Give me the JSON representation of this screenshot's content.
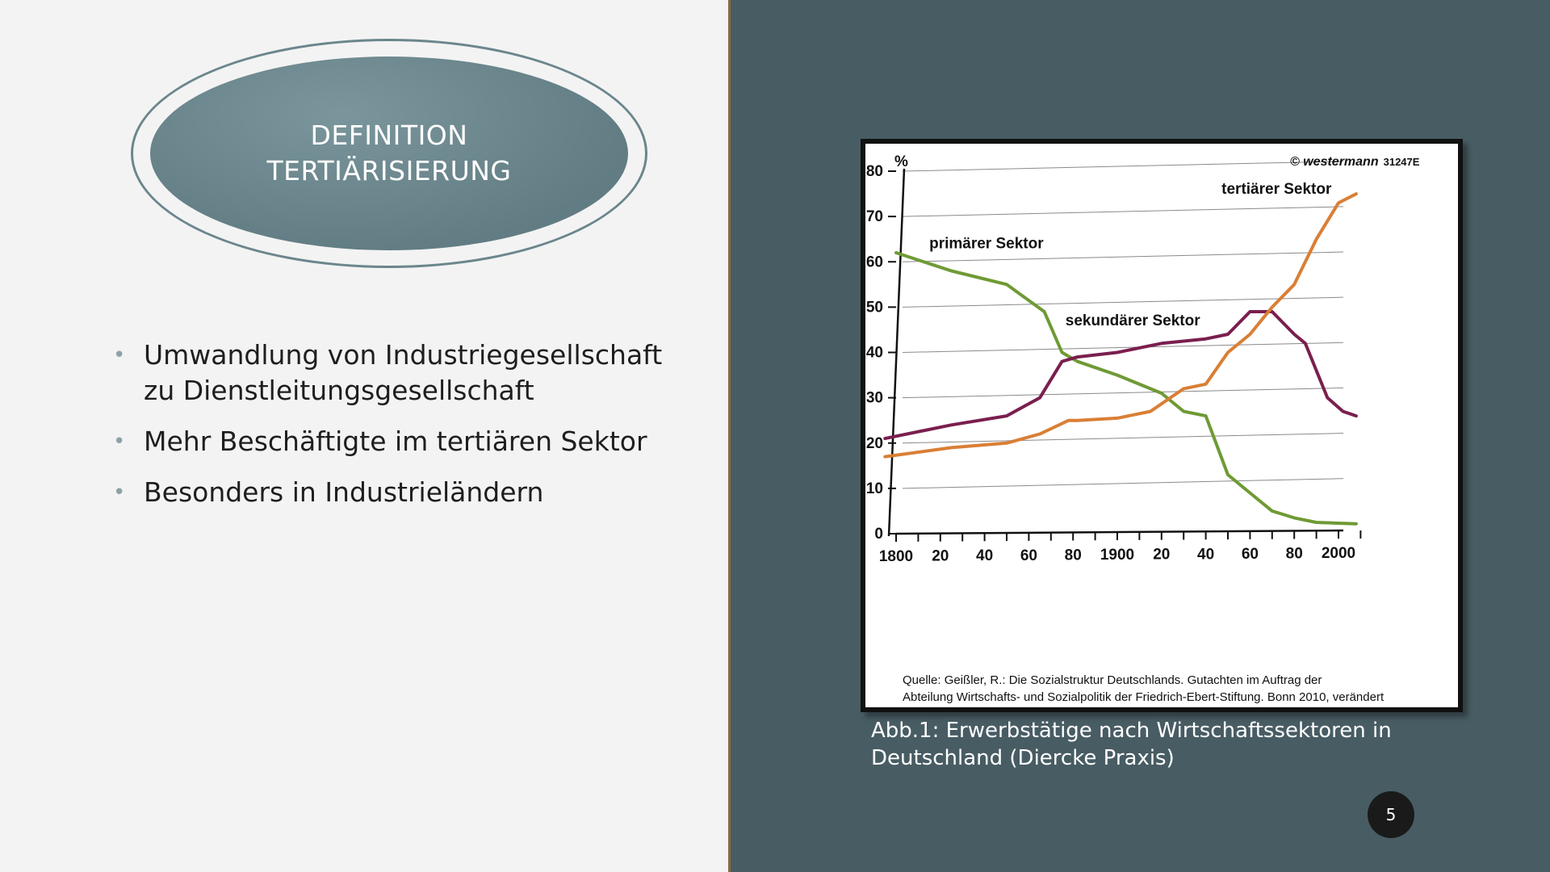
{
  "slide": {
    "title_lines": [
      "DEFINITION",
      "TERTIÄRISIERUNG"
    ],
    "bullets": [
      "Umwandlung von Industriegesellschaft zu Dienstleitungsgesellschaft",
      "Mehr Beschäftigte im tertiären Sektor",
      "Besonders in Industrieländern"
    ],
    "caption": "Abb.1: Erwerbstätige nach Wirtschaftssektoren in Deutschland (Diercke Praxis)",
    "page_number": "5",
    "colors": {
      "left_bg": "#f3f3f3",
      "right_bg": "#485c63",
      "title_ellipse": "#6b868c",
      "page_badge": "#1a1a1a"
    }
  },
  "chart_data": {
    "type": "line",
    "ylabel": "%",
    "ylim": [
      0,
      80
    ],
    "yticks": [
      0,
      10,
      20,
      30,
      40,
      50,
      60,
      70,
      80
    ],
    "xlim": [
      1800,
      2010
    ],
    "xticks": [
      1800,
      1820,
      1840,
      1860,
      1880,
      1900,
      1920,
      1940,
      1960,
      1980,
      2000
    ],
    "xtick_labels": [
      "1800",
      "20",
      "40",
      "60",
      "80",
      "1900",
      "20",
      "40",
      "60",
      "80",
      "2000"
    ],
    "grid": true,
    "copyright": "© westermann",
    "code": "31247E",
    "source": [
      "Quelle: Geißler, R.: Die Sozialstruktur Deutschlands. Gutachten im Auftrag der",
      "Abteilung Wirtschafts- und Sozialpolitik der Friedrich-Ebert-Stiftung. Bonn 2010, verändert"
    ],
    "series": [
      {
        "name": "primärer Sektor",
        "color": "#6f9a35",
        "points": [
          [
            1800,
            62
          ],
          [
            1825,
            58
          ],
          [
            1850,
            55
          ],
          [
            1867,
            49
          ],
          [
            1875,
            40
          ],
          [
            1882,
            38
          ],
          [
            1900,
            35
          ],
          [
            1920,
            31
          ],
          [
            1930,
            27
          ],
          [
            1940,
            26
          ],
          [
            1950,
            13
          ],
          [
            1960,
            9
          ],
          [
            1970,
            5
          ],
          [
            1980,
            3.5
          ],
          [
            1990,
            2.5
          ],
          [
            2008,
            2.2
          ]
        ]
      },
      {
        "name": "sekundärer Sektor",
        "color": "#7a1f4e",
        "points": [
          [
            1795,
            21
          ],
          [
            1825,
            24
          ],
          [
            1850,
            26
          ],
          [
            1865,
            30
          ],
          [
            1875,
            38
          ],
          [
            1882,
            39
          ],
          [
            1900,
            40
          ],
          [
            1920,
            42
          ],
          [
            1940,
            43
          ],
          [
            1950,
            44
          ],
          [
            1960,
            49
          ],
          [
            1970,
            49
          ],
          [
            1980,
            44
          ],
          [
            1985,
            42
          ],
          [
            1995,
            30
          ],
          [
            2002,
            27
          ],
          [
            2008,
            26
          ]
        ]
      },
      {
        "name": "tertiärer Sektor",
        "color": "#d97f35",
        "points": [
          [
            1795,
            17
          ],
          [
            1825,
            19
          ],
          [
            1850,
            20
          ],
          [
            1865,
            22
          ],
          [
            1878,
            25
          ],
          [
            1882,
            25
          ],
          [
            1900,
            25.5
          ],
          [
            1915,
            27
          ],
          [
            1930,
            32
          ],
          [
            1940,
            33
          ],
          [
            1950,
            40
          ],
          [
            1960,
            44
          ],
          [
            1970,
            50
          ],
          [
            1980,
            55
          ],
          [
            1990,
            65
          ],
          [
            2000,
            73
          ],
          [
            2008,
            75
          ]
        ]
      }
    ]
  }
}
